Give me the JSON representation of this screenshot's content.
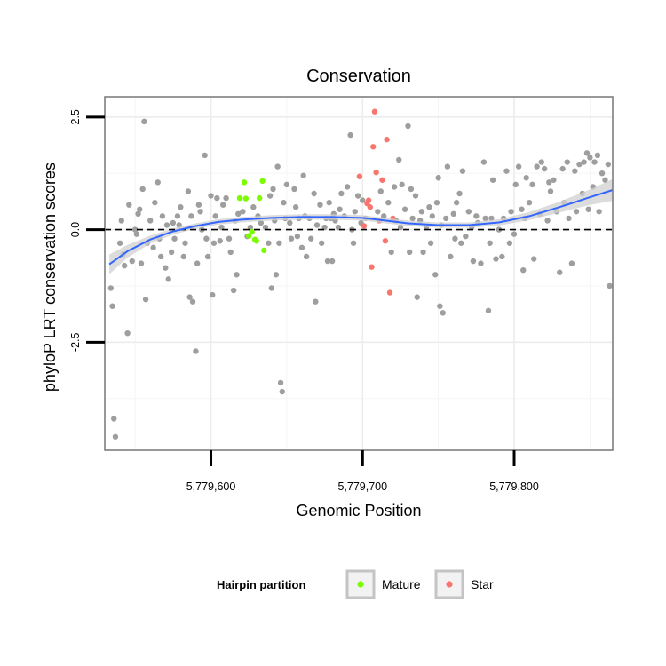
{
  "chart_data": {
    "type": "scatter",
    "title": "Conservation",
    "xlabel": "Genomic Position",
    "ylabel": "phyloP LRT conservation scores",
    "xlim": [
      5779530,
      5779865
    ],
    "ylim": [
      -4.9,
      2.95
    ],
    "x_ticks": [
      5779600,
      5779700,
      5779800
    ],
    "x_tick_labels": [
      "5,779,600",
      "5,779,700",
      "5,779,800"
    ],
    "y_ticks": [
      2.5,
      0.0,
      -2.5
    ],
    "y_tick_labels": [
      "2.5",
      "0.0",
      "-2.5"
    ],
    "reference_line": {
      "y": 0,
      "style": "dashed"
    },
    "grid": true,
    "legend_position": "bottom",
    "legend": {
      "title": "Hairpin partition",
      "entries": [
        {
          "label": "Mature",
          "color": "#7cfc00"
        },
        {
          "label": "Star",
          "color": "#f8766d"
        }
      ]
    },
    "background_color": "#9e9e9e",
    "smooth_color": "#3366ff",
    "band_color": "#d0d0d0",
    "smooth": {
      "x": [
        5779533,
        5779545,
        5779560,
        5779575,
        5779590,
        5779605,
        5779620,
        5779640,
        5779660,
        5779680,
        5779700,
        5779715,
        5779730,
        5779750,
        5779770,
        5779790,
        5779810,
        5779830,
        5779850,
        5779865
      ],
      "y": [
        -0.77,
        -0.48,
        -0.22,
        -0.04,
        0.08,
        0.17,
        0.22,
        0.26,
        0.28,
        0.28,
        0.26,
        0.2,
        0.14,
        0.1,
        0.1,
        0.16,
        0.3,
        0.5,
        0.72,
        0.88
      ],
      "band": [
        0.22,
        0.14,
        0.09,
        0.07,
        0.06,
        0.06,
        0.06,
        0.06,
        0.06,
        0.06,
        0.06,
        0.06,
        0.06,
        0.06,
        0.06,
        0.07,
        0.09,
        0.12,
        0.17,
        0.24
      ]
    },
    "series": [
      {
        "name": "Mature",
        "color": "#7cfc00",
        "points": [
          [
            5779619,
            0.7
          ],
          [
            5779622,
            1.05
          ],
          [
            5779623,
            0.69
          ],
          [
            5779625,
            -0.14
          ],
          [
            5779627,
            -0.05
          ],
          [
            5779629,
            -0.22
          ],
          [
            5779630,
            -0.25
          ],
          [
            5779632,
            0.7
          ],
          [
            5779634,
            1.08
          ],
          [
            5779635,
            -0.46
          ]
        ]
      },
      {
        "name": "Star",
        "color": "#f8766d",
        "points": [
          [
            5779703,
            0.58
          ],
          [
            5779705,
            0.5
          ],
          [
            5779707,
            1.84
          ],
          [
            5779708,
            2.62
          ],
          [
            5779706,
            -0.83
          ],
          [
            5779709,
            1.27
          ],
          [
            5779713,
            1.1
          ],
          [
            5779716,
            2.0
          ],
          [
            5779718,
            -1.4
          ],
          [
            5779720,
            0.25
          ],
          [
            5779698,
            1.18
          ],
          [
            5779701,
            0.08
          ],
          [
            5779711,
            0.2
          ],
          [
            5779715,
            -0.25
          ],
          [
            5779704,
            0.65
          ]
        ]
      },
      {
        "name": "",
        "color": "#9e9e9e",
        "points": [
          [
            5779534,
            -1.3
          ],
          [
            5779535,
            -1.7
          ],
          [
            5779536,
            -4.2
          ],
          [
            5779537,
            -4.6
          ],
          [
            5779540,
            -0.3
          ],
          [
            5779541,
            0.2
          ],
          [
            5779542,
            -0.55
          ],
          [
            5779543,
            -0.8
          ],
          [
            5779545,
            -2.3
          ],
          [
            5779546,
            0.55
          ],
          [
            5779548,
            -0.7
          ],
          [
            5779550,
            0.0
          ],
          [
            5779551,
            -0.1
          ],
          [
            5779552,
            0.35
          ],
          [
            5779553,
            0.45
          ],
          [
            5779554,
            -0.75
          ],
          [
            5779555,
            0.9
          ],
          [
            5779556,
            2.4
          ],
          [
            5779557,
            -1.55
          ],
          [
            5779558,
            -0.3
          ],
          [
            5779560,
            0.2
          ],
          [
            5779562,
            -0.4
          ],
          [
            5779563,
            0.6
          ],
          [
            5779565,
            1.05
          ],
          [
            5779566,
            -0.2
          ],
          [
            5779567,
            -0.6
          ],
          [
            5779568,
            0.3
          ],
          [
            5779570,
            -0.85
          ],
          [
            5779571,
            0.1
          ],
          [
            5779572,
            -1.1
          ],
          [
            5779574,
            -0.5
          ],
          [
            5779575,
            0.15
          ],
          [
            5779576,
            -0.2
          ],
          [
            5779578,
            0.3
          ],
          [
            5779579,
            0.1
          ],
          [
            5779580,
            0.5
          ],
          [
            5779582,
            -0.6
          ],
          [
            5779583,
            -0.3
          ],
          [
            5779585,
            0.85
          ],
          [
            5779586,
            -1.5
          ],
          [
            5779587,
            0.3
          ],
          [
            5779588,
            -1.6
          ],
          [
            5779590,
            -2.7
          ],
          [
            5779591,
            -0.75
          ],
          [
            5779592,
            0.55
          ],
          [
            5779593,
            0.4
          ],
          [
            5779594,
            0.0
          ],
          [
            5779596,
            1.65
          ],
          [
            5779597,
            -0.2
          ],
          [
            5779598,
            -0.6
          ],
          [
            5779600,
            0.75
          ],
          [
            5779601,
            -1.45
          ],
          [
            5779602,
            -0.3
          ],
          [
            5779603,
            0.3
          ],
          [
            5779604,
            0.7
          ],
          [
            5779606,
            -0.25
          ],
          [
            5779607,
            0.05
          ],
          [
            5779608,
            0.55
          ],
          [
            5779610,
            0.7
          ],
          [
            5779612,
            -0.2
          ],
          [
            5779613,
            -0.5
          ],
          [
            5779615,
            -1.35
          ],
          [
            5779616,
            0.2
          ],
          [
            5779617,
            -1.0
          ],
          [
            5779618,
            0.35
          ],
          [
            5779621,
            0.4
          ],
          [
            5779624,
            -0.15
          ],
          [
            5779626,
            0.05
          ],
          [
            5779628,
            0.5
          ],
          [
            5779631,
            0.3
          ],
          [
            5779633,
            0.15
          ],
          [
            5779636,
            0.05
          ],
          [
            5779638,
            -0.3
          ],
          [
            5779639,
            0.75
          ],
          [
            5779640,
            -1.3
          ],
          [
            5779641,
            0.9
          ],
          [
            5779642,
            0.2
          ],
          [
            5779643,
            -1.0
          ],
          [
            5779644,
            1.4
          ],
          [
            5779645,
            -0.3
          ],
          [
            5779646,
            -3.4
          ],
          [
            5779647,
            -3.6
          ],
          [
            5779648,
            0.6
          ],
          [
            5779649,
            0.25
          ],
          [
            5779650,
            1.0
          ],
          [
            5779652,
            0.15
          ],
          [
            5779653,
            -0.2
          ],
          [
            5779655,
            0.9
          ],
          [
            5779656,
            0.5
          ],
          [
            5779657,
            -0.15
          ],
          [
            5779658,
            0.25
          ],
          [
            5779660,
            -0.4
          ],
          [
            5779661,
            1.2
          ],
          [
            5779662,
            0.3
          ],
          [
            5779663,
            -0.6
          ],
          [
            5779665,
            0.25
          ],
          [
            5779666,
            -0.2
          ],
          [
            5779668,
            0.8
          ],
          [
            5779669,
            -1.6
          ],
          [
            5779670,
            0.1
          ],
          [
            5779672,
            0.55
          ],
          [
            5779673,
            -0.3
          ],
          [
            5779675,
            0.05
          ],
          [
            5779676,
            0.25
          ],
          [
            5779677,
            -0.7
          ],
          [
            5779678,
            0.6
          ],
          [
            5779679,
            0.25
          ],
          [
            5779680,
            -0.7
          ],
          [
            5779681,
            0.35
          ],
          [
            5779682,
            0.2
          ],
          [
            5779684,
            0.05
          ],
          [
            5779685,
            0.45
          ],
          [
            5779686,
            0.8
          ],
          [
            5779688,
            0.3
          ],
          [
            5779690,
            0.95
          ],
          [
            5779692,
            2.1
          ],
          [
            5779693,
            0.0
          ],
          [
            5779694,
            -0.3
          ],
          [
            5779695,
            0.4
          ],
          [
            5779697,
            0.75
          ],
          [
            5779699,
            0.15
          ],
          [
            5779700,
            0.65
          ],
          [
            5779702,
            0.25
          ],
          [
            5779710,
            0.4
          ],
          [
            5779712,
            0.85
          ],
          [
            5779714,
            0.3
          ],
          [
            5779717,
            0.6
          ],
          [
            5779719,
            -0.5
          ],
          [
            5779721,
            0.95
          ],
          [
            5779722,
            0.2
          ],
          [
            5779724,
            1.55
          ],
          [
            5779725,
            0.05
          ],
          [
            5779726,
            1.0
          ],
          [
            5779728,
            0.45
          ],
          [
            5779730,
            2.3
          ],
          [
            5779731,
            -0.5
          ],
          [
            5779732,
            0.9
          ],
          [
            5779733,
            0.25
          ],
          [
            5779735,
            0.75
          ],
          [
            5779736,
            -1.5
          ],
          [
            5779738,
            0.2
          ],
          [
            5779739,
            0.4
          ],
          [
            5779740,
            -0.5
          ],
          [
            5779742,
            0.05
          ],
          [
            5779744,
            0.5
          ],
          [
            5779745,
            -0.3
          ],
          [
            5779746,
            0.3
          ],
          [
            5779748,
            -1.0
          ],
          [
            5779749,
            0.6
          ],
          [
            5779750,
            1.15
          ],
          [
            5779751,
            -1.7
          ],
          [
            5779752,
            0.1
          ],
          [
            5779753,
            -1.85
          ],
          [
            5779755,
            0.25
          ],
          [
            5779756,
            1.4
          ],
          [
            5779758,
            -0.6
          ],
          [
            5779760,
            0.35
          ],
          [
            5779761,
            -0.2
          ],
          [
            5779762,
            0.6
          ],
          [
            5779764,
            0.8
          ],
          [
            5779765,
            -0.3
          ],
          [
            5779766,
            1.3
          ],
          [
            5779768,
            -0.15
          ],
          [
            5779770,
            0.4
          ],
          [
            5779772,
            0.05
          ],
          [
            5779773,
            -0.7
          ],
          [
            5779775,
            0.3
          ],
          [
            5779776,
            0.15
          ],
          [
            5779778,
            -0.75
          ],
          [
            5779780,
            1.5
          ],
          [
            5779781,
            0.25
          ],
          [
            5779783,
            -1.8
          ],
          [
            5779784,
            -0.3
          ],
          [
            5779785,
            0.25
          ],
          [
            5779786,
            1.1
          ],
          [
            5779788,
            -0.65
          ],
          [
            5779790,
            0.0
          ],
          [
            5779792,
            -0.6
          ],
          [
            5779793,
            0.25
          ],
          [
            5779795,
            1.3
          ],
          [
            5779797,
            -0.3
          ],
          [
            5779798,
            0.4
          ],
          [
            5779800,
            -0.1
          ],
          [
            5779801,
            1.0
          ],
          [
            5779803,
            1.4
          ],
          [
            5779805,
            0.45
          ],
          [
            5779806,
            -0.9
          ],
          [
            5779807,
            0.25
          ],
          [
            5779808,
            1.15
          ],
          [
            5779810,
            0.6
          ],
          [
            5779812,
            1.0
          ],
          [
            5779813,
            -0.65
          ],
          [
            5779815,
            1.4
          ],
          [
            5779817,
            0.35
          ],
          [
            5779818,
            1.5
          ],
          [
            5779820,
            1.35
          ],
          [
            5779822,
            0.2
          ],
          [
            5779823,
            1.05
          ],
          [
            5779824,
            0.85
          ],
          [
            5779826,
            1.1
          ],
          [
            5779828,
            0.4
          ],
          [
            5779830,
            -0.95
          ],
          [
            5779832,
            1.35
          ],
          [
            5779833,
            0.6
          ],
          [
            5779835,
            1.5
          ],
          [
            5779836,
            0.25
          ],
          [
            5779838,
            -0.75
          ],
          [
            5779840,
            1.3
          ],
          [
            5779841,
            0.4
          ],
          [
            5779843,
            1.45
          ],
          [
            5779845,
            0.8
          ],
          [
            5779846,
            1.5
          ],
          [
            5779848,
            1.7
          ],
          [
            5779849,
            0.45
          ],
          [
            5779850,
            1.6
          ],
          [
            5779852,
            0.95
          ],
          [
            5779853,
            1.5
          ],
          [
            5779855,
            1.65
          ],
          [
            5779856,
            0.4
          ],
          [
            5779858,
            1.25
          ],
          [
            5779860,
            1.1
          ],
          [
            5779862,
            1.45
          ],
          [
            5779863,
            -1.25
          ]
        ]
      }
    ]
  }
}
